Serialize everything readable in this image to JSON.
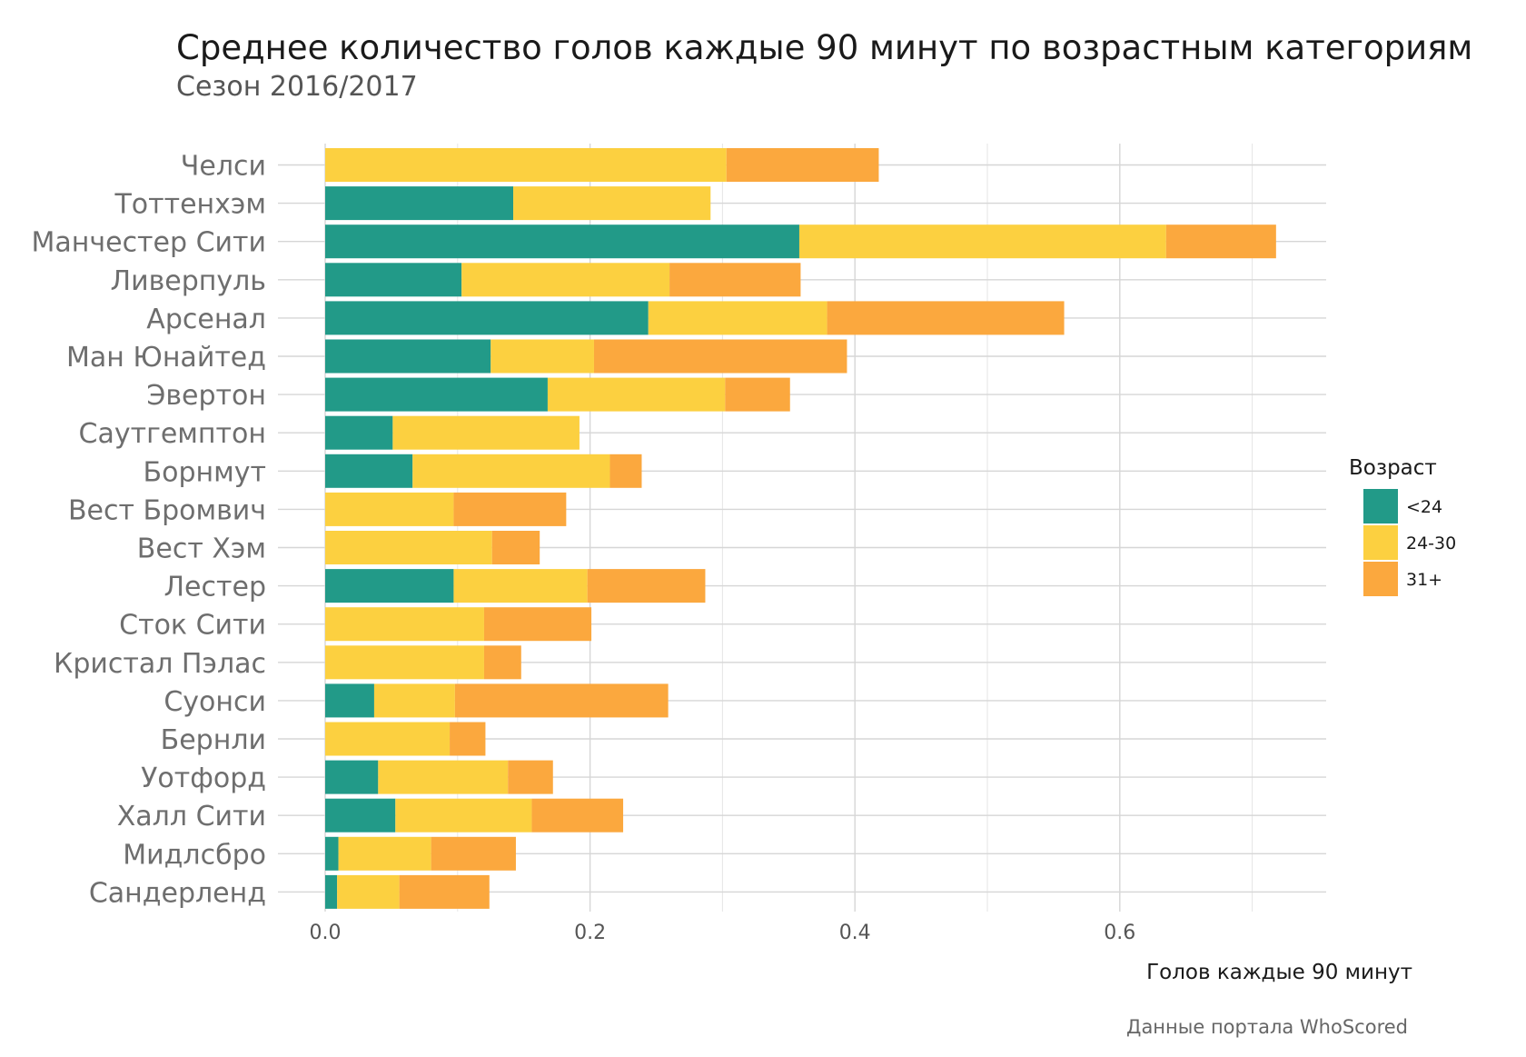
{
  "chart_data": {
    "type": "bar",
    "orientation": "horizontal",
    "stacked": true,
    "title": "Среднее количество голов каждые 90 минут по возрастным категориям",
    "subtitle": "Сезон 2016/2017",
    "xlabel": "Голов каждые 90 минут",
    "ylabel": "",
    "xlim": [
      0,
      0.755
    ],
    "xticks": [
      "0.0",
      "0.2",
      "0.4",
      "0.6"
    ],
    "grid": true,
    "legend_title": "Возраст",
    "legend_position": "right",
    "caption": "Данные портала WhoScored",
    "categories": [
      "Челси",
      "Тоттенхэм",
      "Манчестер Сити",
      "Ливерпуль",
      "Арсенал",
      "Ман Юнайтед",
      "Эвертон",
      "Саутгемптон",
      "Борнмут",
      "Вест Бромвич",
      "Вест Хэм",
      "Лестер",
      "Сток Сити",
      "Кристал Пэлас",
      "Суонси",
      "Бернли",
      "Уотфорд",
      "Халл Сити",
      "Мидлсбро",
      "Сандерленд"
    ],
    "series": [
      {
        "name": "<24",
        "color": "#229a88",
        "values": [
          0.0,
          0.142,
          0.358,
          0.103,
          0.244,
          0.125,
          0.168,
          0.051,
          0.066,
          0.0,
          0.0,
          0.097,
          0.0,
          0.0,
          0.037,
          0.0,
          0.04,
          0.053,
          0.01,
          0.009
        ]
      },
      {
        "name": "24-30",
        "color": "#fcd040",
        "values": [
          0.303,
          0.149,
          0.277,
          0.157,
          0.135,
          0.078,
          0.134,
          0.141,
          0.149,
          0.097,
          0.126,
          0.101,
          0.12,
          0.12,
          0.061,
          0.094,
          0.098,
          0.103,
          0.07,
          0.047
        ]
      },
      {
        "name": "31+",
        "color": "#fba83e",
        "values": [
          0.115,
          0.0,
          0.083,
          0.099,
          0.179,
          0.191,
          0.049,
          0.0,
          0.024,
          0.085,
          0.036,
          0.089,
          0.081,
          0.028,
          0.161,
          0.027,
          0.034,
          0.069,
          0.064,
          0.068
        ]
      }
    ]
  }
}
